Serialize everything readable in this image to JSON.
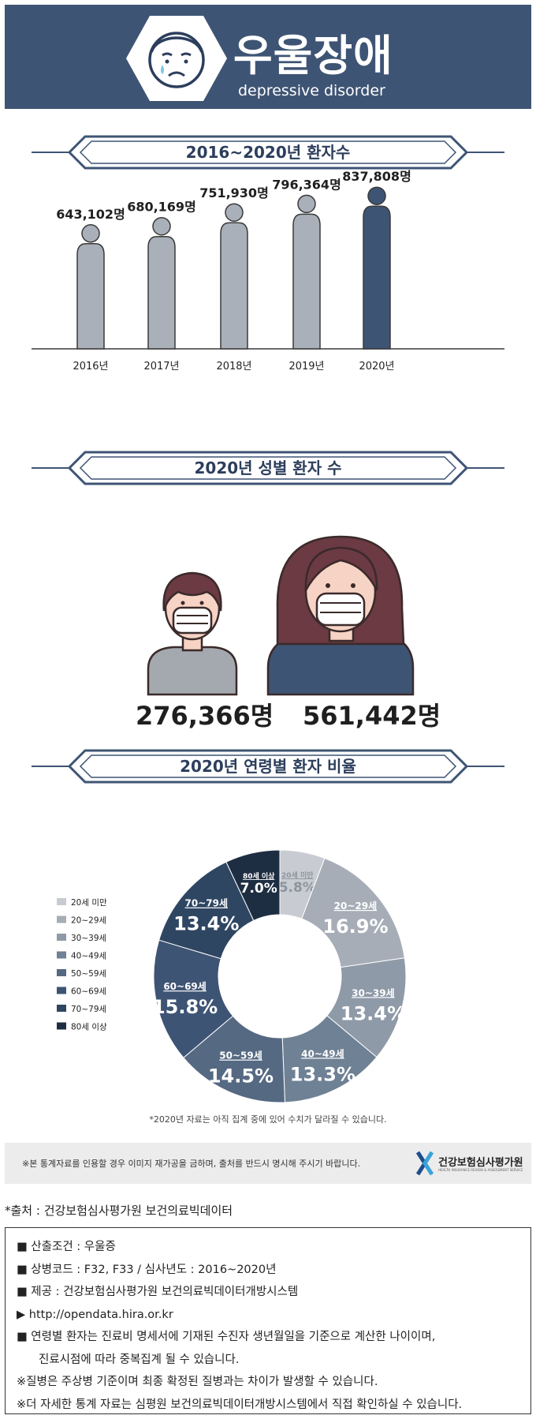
{
  "header": {
    "title": "우울장애",
    "subtitle": "depressive disorder",
    "colors": {
      "bg": "#3e5474",
      "icon": "#2c3e5c"
    }
  },
  "sections": {
    "yearly_title": "2016~2020년 환자수",
    "gender_title": "2020년 성별 환자 수",
    "age_title": "2020년 연령별 환자 비율"
  },
  "chart_data": [
    {
      "type": "bar",
      "categories": [
        "2016년",
        "2017년",
        "2018년",
        "2019년",
        "2020년"
      ],
      "values": [
        643102,
        680169,
        751930,
        796364,
        837808
      ],
      "value_labels": [
        "643,102명",
        "680,169명",
        "751,930명",
        "796,364명",
        "837,808명"
      ],
      "colors": [
        "#a9b0b9",
        "#a9b0b9",
        "#a9b0b9",
        "#a9b0b9",
        "#3e5474"
      ],
      "grid": false
    },
    {
      "type": "bar",
      "categories": [
        "남성",
        "여성"
      ],
      "values": [
        276366,
        561442
      ],
      "value_labels": [
        "276,366명",
        "561,442명"
      ],
      "colors": [
        "#a4a9af",
        "#3e5474"
      ]
    },
    {
      "type": "pie",
      "labels": [
        "20세 미만",
        "20~29세",
        "30~39세",
        "40~49세",
        "50~59세",
        "60~69세",
        "70~79세",
        "80세 이상"
      ],
      "values": [
        5.8,
        16.9,
        13.4,
        13.3,
        14.5,
        15.8,
        13.4,
        7.0
      ],
      "value_labels": [
        "5.8%",
        "16.9%",
        "13.4%",
        "13.3%",
        "14.5%",
        "15.8%",
        "13.4%",
        "7.0%"
      ],
      "colors": [
        "#c8ccd2",
        "#a6adb7",
        "#8f9aa8",
        "#6f8194",
        "#556982",
        "#3e5474",
        "#2f4662",
        "#1e2e42"
      ],
      "legend": "left"
    }
  ],
  "note": "*2020년 자료는 아직 집계 중에 있어 수치가 달라질 수 있습니다.",
  "notice": {
    "text": "※본 통계자료를 인용할 경우 이미지 재가공을 금하며, 출처를 반드시 명시해 주시기 바랍니다.",
    "logo_name": "건강보험심사평가원",
    "logo_sub": "HEALTH INSURANCE REVIEW & ASSESSMENT SERVICE"
  },
  "source": "*출처 : 건강보험심사평가원 보건의료빅데이터",
  "info": [
    {
      "text": "■ 산출조건 : 우울증",
      "indent": false
    },
    {
      "text": "■ 상병코드 : F32, F33 / 심사년도 : 2016~2020년",
      "indent": false
    },
    {
      "text": "■ 제공 : 건강보험심사평가원 보건의료빅데이터개방시스템",
      "indent": false
    },
    {
      "text": "▶ http://opendata.hira.or.kr",
      "indent": false
    },
    {
      "text": "■ 연령별 환자는 진료비 명세서에 기재된 수진자 생년월일을 기준으로 계산한 나이이며,",
      "indent": false
    },
    {
      "text": "진료시점에 따라 중복집계 될 수 있습니다.",
      "indent": true
    },
    {
      "text": "※질병은 주상병 기준이며 최종 확정된 질병과는 차이가 발생할 수 있습니다.",
      "indent": false
    },
    {
      "text": "※더 자세한 통계 자료는 심평원 보건의료빅데이터개방시스템에서 직접 확인하실 수 있습니다.",
      "indent": false
    }
  ]
}
